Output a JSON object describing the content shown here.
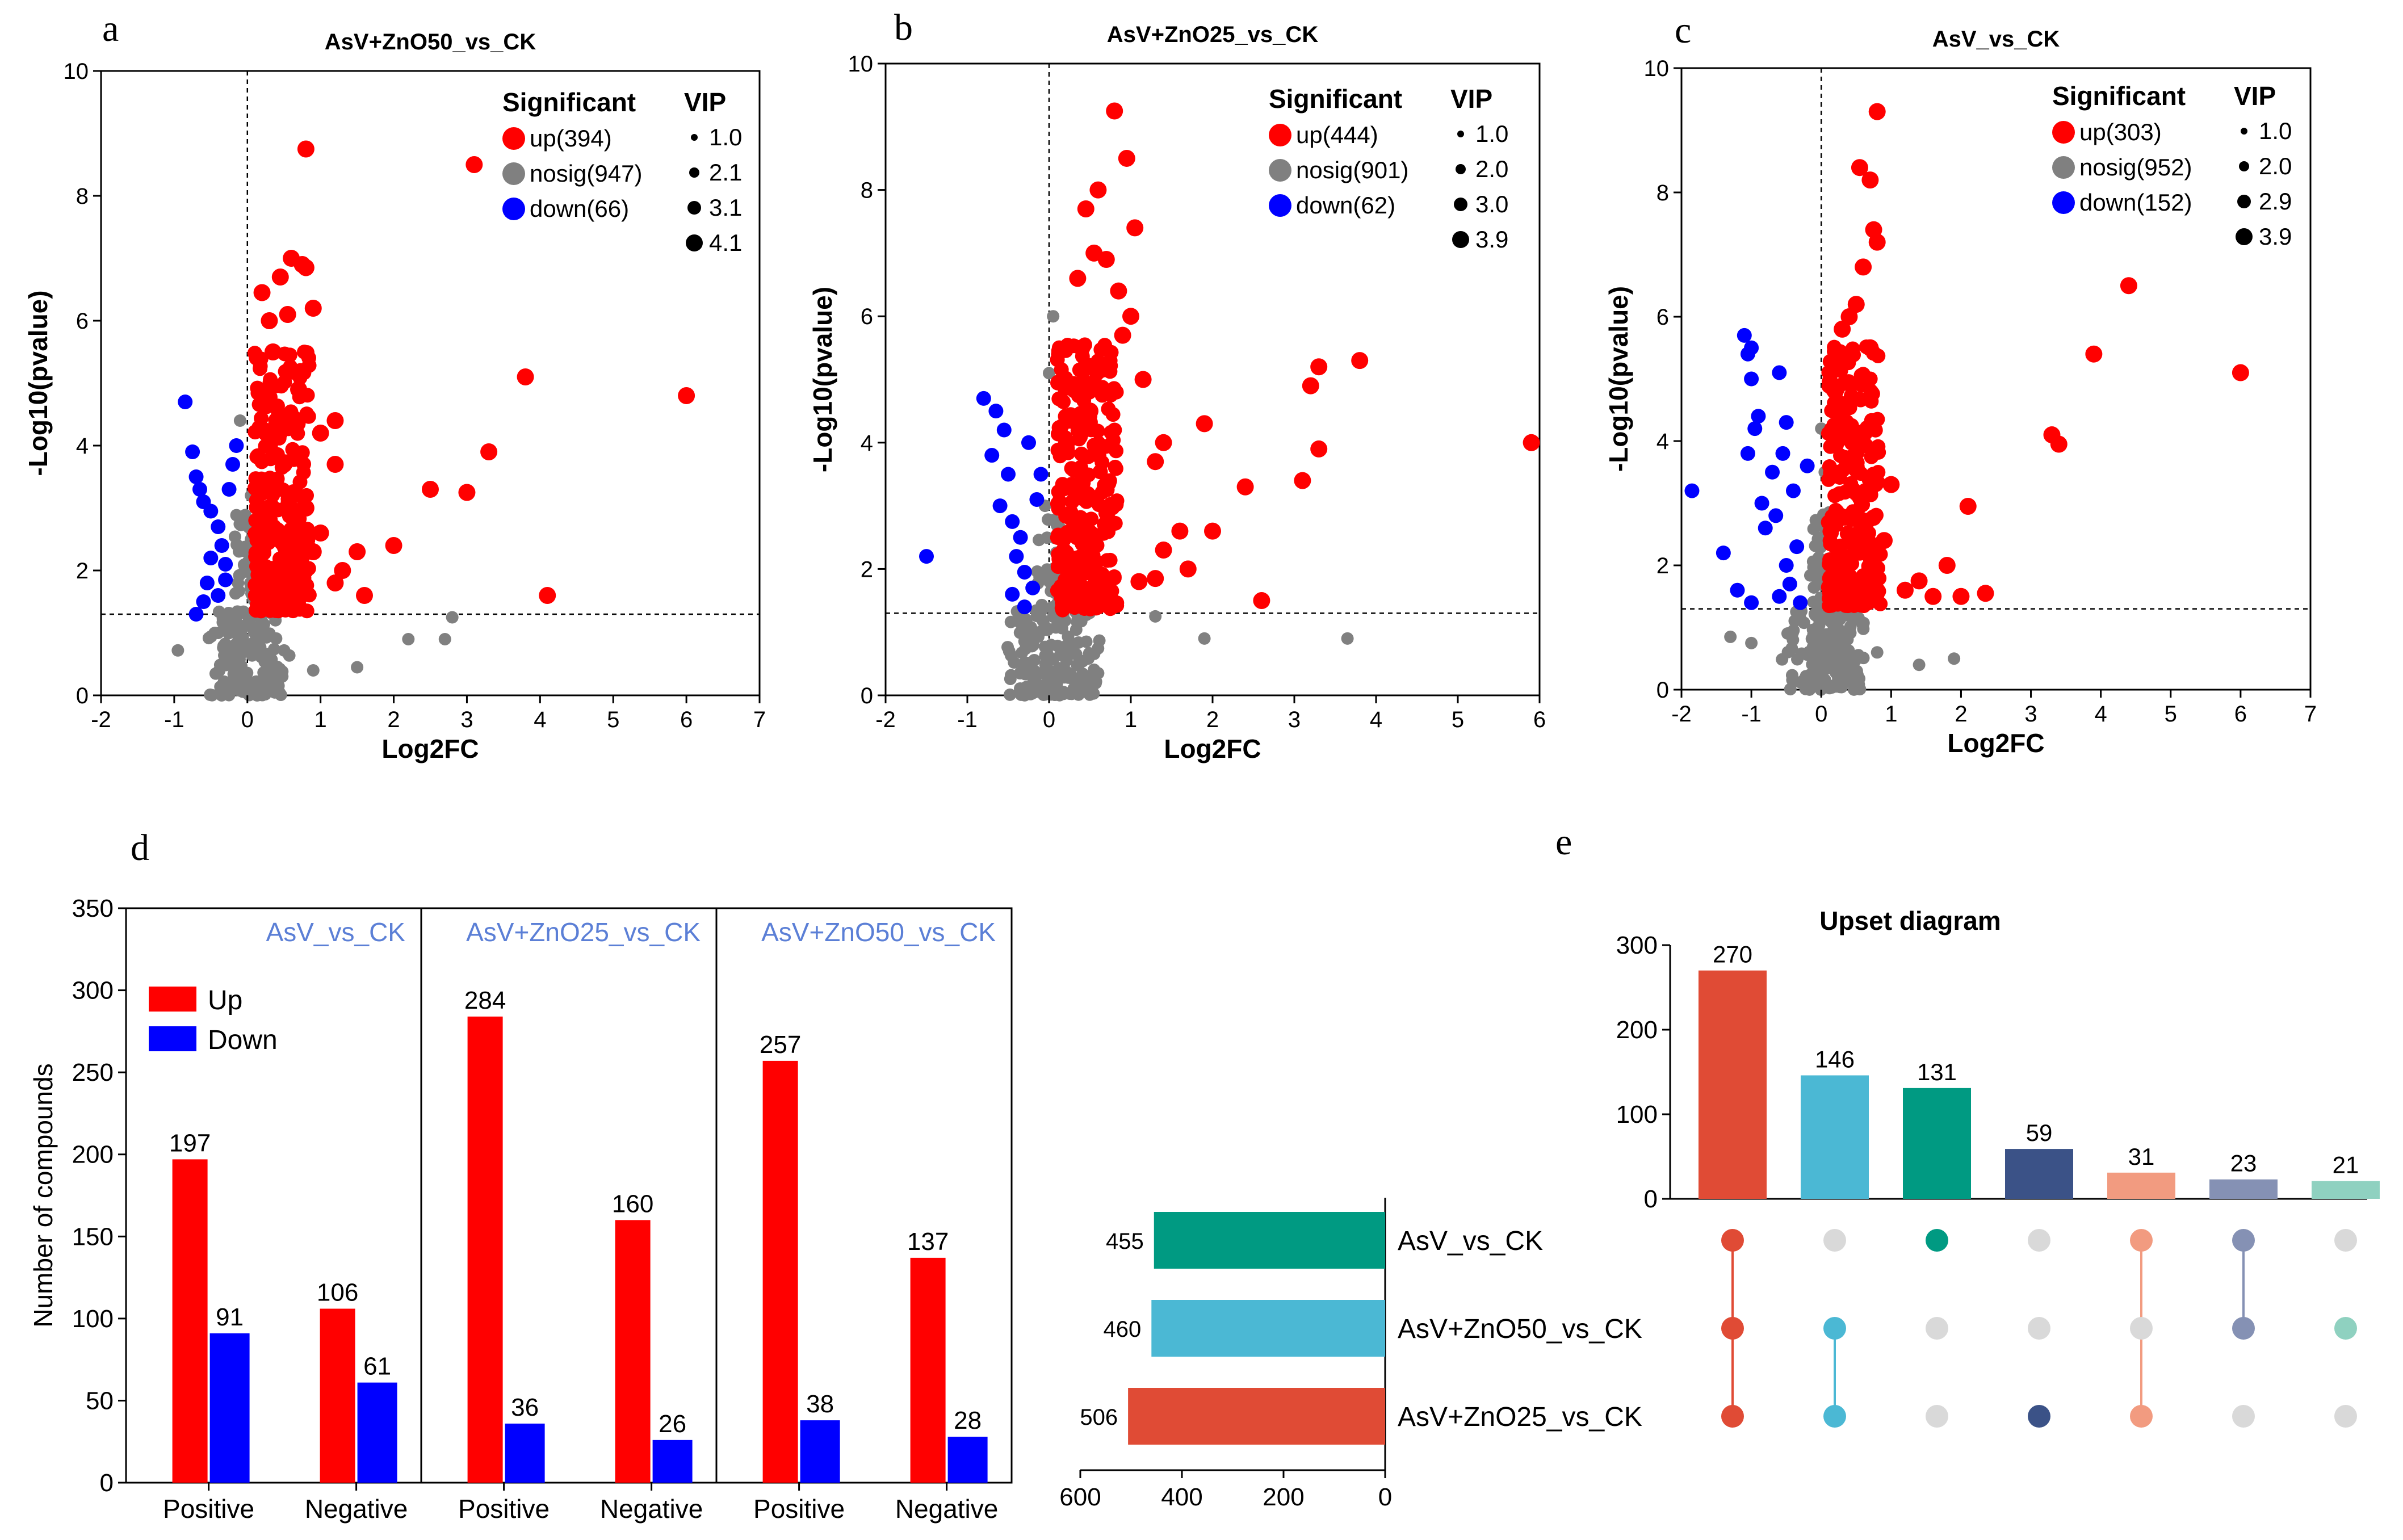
{
  "chart_data": [
    {
      "type": "scatter",
      "panel": "a",
      "title": "AsV+ZnO50_vs_CK",
      "xlabel": "Log2FC",
      "ylabel": "-Log10(pvalue)",
      "xlim": [
        -2,
        7
      ],
      "ylim": [
        0,
        10
      ],
      "xticks": [
        -2,
        -1,
        0,
        1,
        2,
        3,
        4,
        5,
        6,
        7
      ],
      "yticks": [
        0,
        2,
        4,
        6,
        8,
        10
      ],
      "legend_title": "Significant",
      "legend_entries": [
        "up(394)",
        "nosig(947)",
        "down(66)"
      ],
      "vip_title": "VIP",
      "vip_values": [
        "1.0",
        "2.1",
        "3.1",
        "4.1"
      ],
      "thresholds": {
        "x": 0,
        "y": 1.3
      },
      "points_up": [
        [
          0.8,
          8.75
        ],
        [
          3.1,
          8.5
        ],
        [
          0.6,
          7.0
        ],
        [
          0.75,
          6.9
        ],
        [
          0.8,
          6.85
        ],
        [
          0.45,
          6.7
        ],
        [
          0.9,
          6.2
        ],
        [
          0.2,
          6.45
        ],
        [
          0.3,
          6.0
        ],
        [
          0.55,
          6.1
        ],
        [
          3.8,
          5.1
        ],
        [
          6.0,
          4.8
        ],
        [
          0.35,
          5.5
        ],
        [
          0.6,
          5.2
        ],
        [
          0.7,
          4.9
        ],
        [
          1.2,
          4.4
        ],
        [
          1.0,
          4.2
        ],
        [
          1.2,
          3.7
        ],
        [
          3.3,
          3.9
        ],
        [
          2.5,
          3.3
        ],
        [
          3.0,
          3.25
        ],
        [
          0.8,
          3.0
        ],
        [
          1.0,
          2.6
        ],
        [
          1.5,
          2.3
        ],
        [
          2.0,
          2.4
        ],
        [
          1.3,
          2.0
        ],
        [
          1.6,
          1.6
        ],
        [
          4.1,
          1.6
        ],
        [
          0.9,
          2.3
        ],
        [
          1.2,
          1.8
        ],
        [
          0.4,
          4.4
        ],
        [
          0.5,
          3.7
        ]
      ],
      "points_nosig": [
        [
          -0.95,
          0.72
        ],
        [
          2.2,
          0.9
        ],
        [
          2.7,
          0.9
        ],
        [
          2.8,
          1.25
        ],
        [
          0.9,
          0.4
        ],
        [
          1.5,
          0.45
        ],
        [
          -0.4,
          1.0
        ],
        [
          0.1,
          1.7
        ],
        [
          0.05,
          2.5
        ],
        [
          -0.1,
          4.4
        ],
        [
          0.05,
          3.2
        ],
        [
          0.3,
          0.3
        ]
      ],
      "points_down": [
        [
          -0.85,
          4.7
        ],
        [
          -0.75,
          3.9
        ],
        [
          -0.7,
          3.5
        ],
        [
          -0.65,
          3.3
        ],
        [
          -0.6,
          3.1
        ],
        [
          -0.5,
          2.95
        ],
        [
          -0.4,
          2.7
        ],
        [
          -0.35,
          2.4
        ],
        [
          -0.3,
          2.1
        ],
        [
          -0.55,
          1.8
        ],
        [
          -0.6,
          1.5
        ],
        [
          -0.7,
          1.3
        ],
        [
          -0.25,
          3.3
        ],
        [
          -0.2,
          3.7
        ],
        [
          -0.15,
          4.0
        ],
        [
          -0.4,
          1.6
        ],
        [
          -0.5,
          2.2
        ],
        [
          -0.3,
          1.85
        ]
      ]
    },
    {
      "type": "scatter",
      "panel": "b",
      "title": "AsV+ZnO25_vs_CK",
      "xlabel": "Log2FC",
      "ylabel": "-Log10(pvalue)",
      "xlim": [
        -2,
        6
      ],
      "ylim": [
        0,
        10
      ],
      "xticks": [
        -2,
        -1,
        0,
        1,
        2,
        3,
        4,
        5,
        6
      ],
      "yticks": [
        0,
        2,
        4,
        6,
        8,
        10
      ],
      "legend_title": "Significant",
      "legend_entries": [
        "up(444)",
        "nosig(901)",
        "down(62)"
      ],
      "vip_title": "VIP",
      "vip_values": [
        "1.0",
        "2.0",
        "3.0",
        "3.9"
      ],
      "thresholds": {
        "x": 0,
        "y": 1.3
      },
      "points_up": [
        [
          0.8,
          9.25
        ],
        [
          0.95,
          8.5
        ],
        [
          0.6,
          8.0
        ],
        [
          1.05,
          7.4
        ],
        [
          0.45,
          7.7
        ],
        [
          0.55,
          7.0
        ],
        [
          0.7,
          6.9
        ],
        [
          0.35,
          6.6
        ],
        [
          0.85,
          6.4
        ],
        [
          1.0,
          6.0
        ],
        [
          0.4,
          5.5
        ],
        [
          3.3,
          5.2
        ],
        [
          3.8,
          5.3
        ],
        [
          3.2,
          4.9
        ],
        [
          1.9,
          4.3
        ],
        [
          1.4,
          4.0
        ],
        [
          1.3,
          3.7
        ],
        [
          3.3,
          3.9
        ],
        [
          3.1,
          3.4
        ],
        [
          2.4,
          3.3
        ],
        [
          1.6,
          2.6
        ],
        [
          2.0,
          2.6
        ],
        [
          1.4,
          2.3
        ],
        [
          1.3,
          1.85
        ],
        [
          1.1,
          1.8
        ],
        [
          2.6,
          1.5
        ],
        [
          5.9,
          4.0
        ],
        [
          1.7,
          2.0
        ],
        [
          0.9,
          5.7
        ],
        [
          1.15,
          5.0
        ],
        [
          0.5,
          4.5
        ]
      ],
      "points_nosig": [
        [
          0.05,
          6.0
        ],
        [
          0.0,
          5.1
        ],
        [
          3.65,
          0.9
        ],
        [
          1.9,
          0.9
        ],
        [
          1.3,
          1.25
        ],
        [
          -0.3,
          1.1
        ],
        [
          0.6,
          0.35
        ],
        [
          0.3,
          0.25
        ],
        [
          -0.05,
          3.0
        ],
        [
          0.05,
          2.0
        ]
      ],
      "points_down": [
        [
          -1.5,
          2.2
        ],
        [
          -0.8,
          4.7
        ],
        [
          -0.65,
          4.5
        ],
        [
          -0.55,
          4.2
        ],
        [
          -0.7,
          3.8
        ],
        [
          -0.5,
          3.5
        ],
        [
          -0.6,
          3.0
        ],
        [
          -0.45,
          2.75
        ],
        [
          -0.35,
          2.5
        ],
        [
          -0.4,
          2.2
        ],
        [
          -0.3,
          1.95
        ],
        [
          -0.2,
          1.7
        ],
        [
          -0.15,
          3.1
        ],
        [
          -0.1,
          3.5
        ],
        [
          -0.25,
          4.0
        ],
        [
          -0.45,
          1.6
        ],
        [
          -0.3,
          1.4
        ]
      ]
    },
    {
      "type": "scatter",
      "panel": "c",
      "title": "AsV_vs_CK",
      "xlabel": "Log2FC",
      "ylabel": "-Log10(pvalue)",
      "xlim": [
        -2,
        7
      ],
      "ylim": [
        0,
        10
      ],
      "xticks": [
        -2,
        -1,
        0,
        1,
        2,
        3,
        4,
        5,
        6,
        7
      ],
      "yticks": [
        0,
        2,
        4,
        6,
        8,
        10
      ],
      "legend_title": "Significant",
      "legend_entries": [
        "up(303)",
        "nosig(952)",
        "down(152)"
      ],
      "vip_title": "VIP",
      "vip_values": [
        "1.0",
        "2.0",
        "2.9",
        "3.9"
      ],
      "thresholds": {
        "x": 0,
        "y": 1.3
      },
      "points_up": [
        [
          0.8,
          9.3
        ],
        [
          0.55,
          8.4
        ],
        [
          0.7,
          8.2
        ],
        [
          0.75,
          7.4
        ],
        [
          0.8,
          7.2
        ],
        [
          0.6,
          6.8
        ],
        [
          0.5,
          6.2
        ],
        [
          0.4,
          6.0
        ],
        [
          0.3,
          5.8
        ],
        [
          0.7,
          5.5
        ],
        [
          4.4,
          6.5
        ],
        [
          3.9,
          5.4
        ],
        [
          6.0,
          5.1
        ],
        [
          3.3,
          4.1
        ],
        [
          3.4,
          3.95
        ],
        [
          1.0,
          3.3
        ],
        [
          2.1,
          2.95
        ],
        [
          1.8,
          2.0
        ],
        [
          1.4,
          1.75
        ],
        [
          1.2,
          1.6
        ],
        [
          2.0,
          1.5
        ],
        [
          2.35,
          1.55
        ],
        [
          1.6,
          1.5
        ],
        [
          0.9,
          2.4
        ],
        [
          0.35,
          4.3
        ],
        [
          0.45,
          3.6
        ],
        [
          0.2,
          4.8
        ]
      ],
      "points_nosig": [
        [
          -1.3,
          0.85
        ],
        [
          -1.0,
          0.75
        ],
        [
          1.4,
          0.4
        ],
        [
          1.9,
          0.5
        ],
        [
          0.8,
          0.6
        ],
        [
          0.1,
          1.5
        ],
        [
          0.05,
          3.5
        ],
        [
          0.0,
          4.2
        ],
        [
          -0.1,
          2.0
        ]
      ],
      "points_down": [
        [
          -1.85,
          3.2
        ],
        [
          -1.4,
          2.2
        ],
        [
          -1.2,
          1.6
        ],
        [
          -1.0,
          5.5
        ],
        [
          -1.1,
          5.7
        ],
        [
          -1.05,
          5.4
        ],
        [
          -1.0,
          5.0
        ],
        [
          -0.6,
          5.1
        ],
        [
          -0.5,
          4.3
        ],
        [
          -0.9,
          4.4
        ],
        [
          -0.95,
          4.2
        ],
        [
          -0.55,
          3.8
        ],
        [
          -0.7,
          3.5
        ],
        [
          -0.4,
          3.2
        ],
        [
          -0.65,
          2.8
        ],
        [
          -0.8,
          2.6
        ],
        [
          -0.35,
          2.3
        ],
        [
          -0.5,
          2.0
        ],
        [
          -0.45,
          1.7
        ],
        [
          -0.6,
          1.5
        ],
        [
          -0.3,
          1.4
        ],
        [
          -1.0,
          1.4
        ],
        [
          -0.2,
          3.6
        ],
        [
          -1.05,
          3.8
        ],
        [
          -0.85,
          3.0
        ]
      ]
    },
    {
      "type": "bar",
      "panel": "d",
      "ylabel": "Number of compounds",
      "ylim": [
        0,
        350
      ],
      "yticks": [
        0,
        50,
        100,
        150,
        200,
        250,
        300,
        350
      ],
      "categories": [
        "Positive",
        "Negative"
      ],
      "groups": [
        {
          "name": "AsV_vs_CK",
          "up": [
            197,
            106
          ],
          "down": [
            91,
            61
          ]
        },
        {
          "name": "AsV+ZnO25_vs_CK",
          "up": [
            284,
            160
          ],
          "down": [
            36,
            26
          ]
        },
        {
          "name": "AsV+ZnO50_vs_CK",
          "up": [
            257,
            137
          ],
          "down": [
            38,
            28
          ]
        }
      ],
      "series": [
        {
          "name": "Up",
          "color": "#ff0000"
        },
        {
          "name": "Down",
          "color": "#0000ff"
        }
      ],
      "legend_position": "top-left"
    },
    {
      "type": "bar",
      "panel": "e",
      "title": "Upset diagram",
      "ylim": [
        0,
        300
      ],
      "yticks": [
        0,
        100,
        200,
        300
      ],
      "intersections": [
        {
          "value": 270,
          "color": "#e04b35",
          "sets": [
            0,
            1,
            2
          ]
        },
        {
          "value": 146,
          "color": "#4bb8d4",
          "sets": [
            1,
            2
          ]
        },
        {
          "value": 131,
          "color": "#009a82",
          "sets": [
            0
          ]
        },
        {
          "value": 59,
          "color": "#3b5287",
          "sets": [
            2
          ]
        },
        {
          "value": 31,
          "color": "#f29b80",
          "sets": [
            0,
            2
          ]
        },
        {
          "value": 23,
          "color": "#8591b4",
          "sets": [
            0,
            1
          ]
        },
        {
          "value": 21,
          "color": "#8fd1c0",
          "sets": [
            1
          ]
        }
      ],
      "set_sizes": {
        "names": [
          "AsV_vs_CK",
          "AsV+ZnO50_vs_CK",
          "AsV+ZnO25_vs_CK"
        ],
        "values": [
          455,
          460,
          506
        ],
        "colors": [
          "#009a82",
          "#4bb8d4",
          "#e04b35"
        ],
        "xlim": [
          0,
          600
        ],
        "xticks": [
          600,
          400,
          200,
          0
        ]
      }
    }
  ],
  "panel_letters": [
    "a",
    "b",
    "c",
    "d",
    "e"
  ],
  "colors": {
    "up": "#ff0000",
    "nosig": "#808080",
    "down": "#0000ff",
    "group_label": "#5b7fd6",
    "empty_dot": "#d9d9d9"
  }
}
